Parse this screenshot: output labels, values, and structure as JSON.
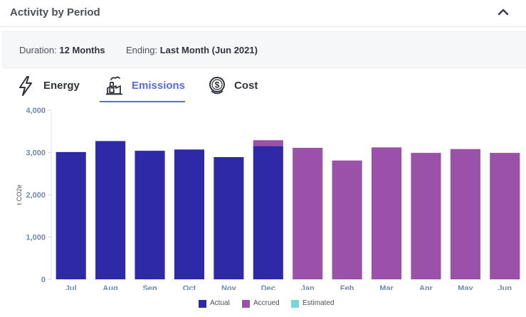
{
  "header": {
    "title": "Activity by Period"
  },
  "filters": {
    "duration_label": "Duration:",
    "duration_value": "12 Months",
    "ending_label": "Ending:",
    "ending_value": "Last Month (Jun 2021)"
  },
  "tabs": [
    {
      "label": "Energy",
      "icon": "lightning-bolt-icon",
      "active": false
    },
    {
      "label": "Emissions",
      "icon": "factory-icon",
      "active": true
    },
    {
      "label": "Cost",
      "icon": "dollar-coin-icon",
      "active": false
    }
  ],
  "colors": {
    "accent": "#5a6ad8",
    "actual": "#2e29a6",
    "accrued": "#9b51a8",
    "estimated": "#76d6de",
    "axis_text": "#6f8aa8"
  },
  "chart_data": {
    "type": "bar",
    "stacked": true,
    "categories": [
      "Jul",
      "Aug",
      "Sep",
      "Oct",
      "Nov",
      "Dec",
      "Jan",
      "Feb",
      "Mar",
      "Apr",
      "May",
      "Jun"
    ],
    "series": [
      {
        "name": "Actual",
        "color": "#2e29a6",
        "values": [
          3010,
          3270,
          3040,
          3070,
          2890,
          3150,
          0,
          0,
          0,
          0,
          0,
          0
        ]
      },
      {
        "name": "Accrued",
        "color": "#9b51a8",
        "values": [
          0,
          0,
          0,
          0,
          0,
          140,
          3110,
          2810,
          3120,
          2990,
          3080,
          2990
        ]
      },
      {
        "name": "Estimated",
        "color": "#76d6de",
        "values": [
          0,
          0,
          0,
          0,
          0,
          0,
          0,
          0,
          0,
          0,
          0,
          0
        ]
      }
    ],
    "ylabel": "t CO2e",
    "ylim": [
      0,
      4000
    ],
    "yticks": [
      "0",
      "1,000",
      "2,000",
      "3,000",
      "4,000"
    ],
    "ytick_values": [
      0,
      1000,
      2000,
      3000,
      4000
    ],
    "grid": false,
    "legend_position": "bottom"
  }
}
